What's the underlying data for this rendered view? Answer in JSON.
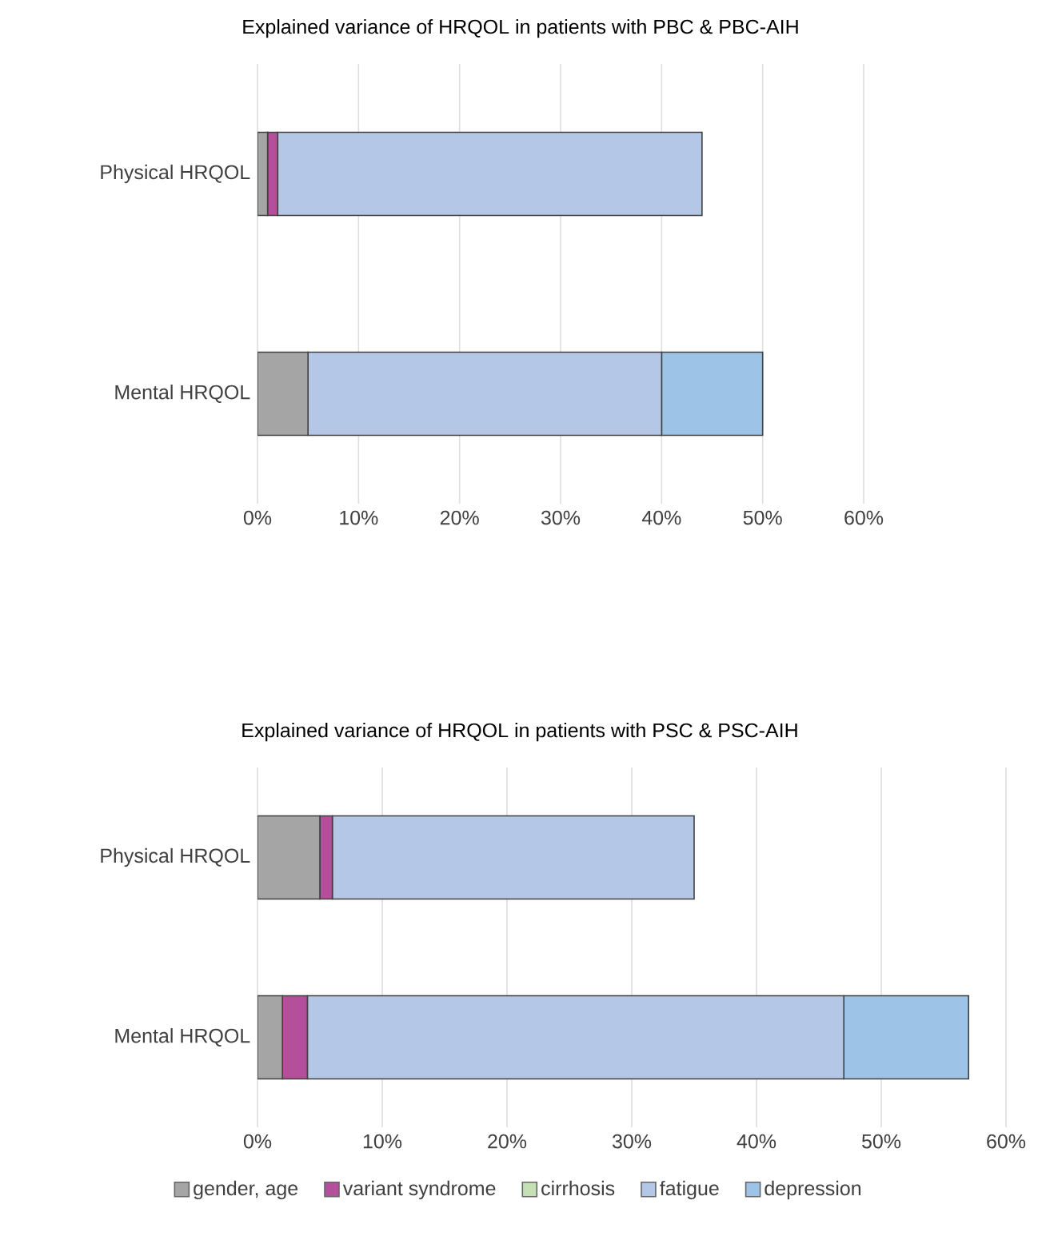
{
  "chart_data": [
    {
      "type": "bar",
      "orientation": "horizontal",
      "stacked": true,
      "title": "Explained variance of HRQOL in patients with PBC & PBC-AIH",
      "categories": [
        "Physical HRQOL",
        "Mental HRQOL"
      ],
      "series": [
        {
          "color": "#a5a5a5",
          "values": [
            1,
            5
          ]
        },
        {
          "color": "#b4509b",
          "values": [
            1,
            0
          ]
        },
        {
          "color": "#c5e0b4",
          "values": [
            0,
            0
          ]
        },
        {
          "color": "#b4c7e7",
          "values": [
            42,
            35
          ]
        },
        {
          "color": "#9dc3e6",
          "values": [
            0,
            10
          ]
        }
      ],
      "xlim": [
        0,
        60
      ],
      "xticks": [
        {
          "value": 0,
          "label": "0%"
        },
        {
          "value": 10,
          "label": "10%"
        },
        {
          "value": 20,
          "label": "20%"
        },
        {
          "value": 30,
          "label": "30%"
        },
        {
          "value": 40,
          "label": "40%"
        },
        {
          "value": 50,
          "label": "50%"
        },
        {
          "value": 60,
          "label": "60%"
        }
      ],
      "grid": "x"
    },
    {
      "type": "bar",
      "orientation": "horizontal",
      "stacked": true,
      "title": "Explained variance of HRQOL in patients with PSC & PSC-AIH",
      "categories": [
        "Physical HRQOL",
        "Mental HRQOL"
      ],
      "series": [
        {
          "name": "gender, age",
          "color": "#a5a5a5",
          "values": [
            5,
            2
          ]
        },
        {
          "name": "variant syndrome",
          "color": "#b4509b",
          "values": [
            1,
            2
          ]
        },
        {
          "name": "cirrhosis",
          "color": "#c5e0b4",
          "values": [
            0,
            0
          ]
        },
        {
          "name": "fatigue",
          "color": "#b4c7e7",
          "values": [
            29,
            43
          ]
        },
        {
          "name": "depression",
          "color": "#9dc3e6",
          "values": [
            0,
            10
          ]
        }
      ],
      "xlim": [
        0,
        60
      ],
      "xticks": [
        {
          "value": 0,
          "label": "0%"
        },
        {
          "value": 10,
          "label": "10%"
        },
        {
          "value": 20,
          "label": "20%"
        },
        {
          "value": 30,
          "label": "30%"
        },
        {
          "value": 40,
          "label": "40%"
        },
        {
          "value": 50,
          "label": "50%"
        },
        {
          "value": 60,
          "label": "60%"
        }
      ],
      "grid": "x",
      "legend": "bottom"
    }
  ]
}
